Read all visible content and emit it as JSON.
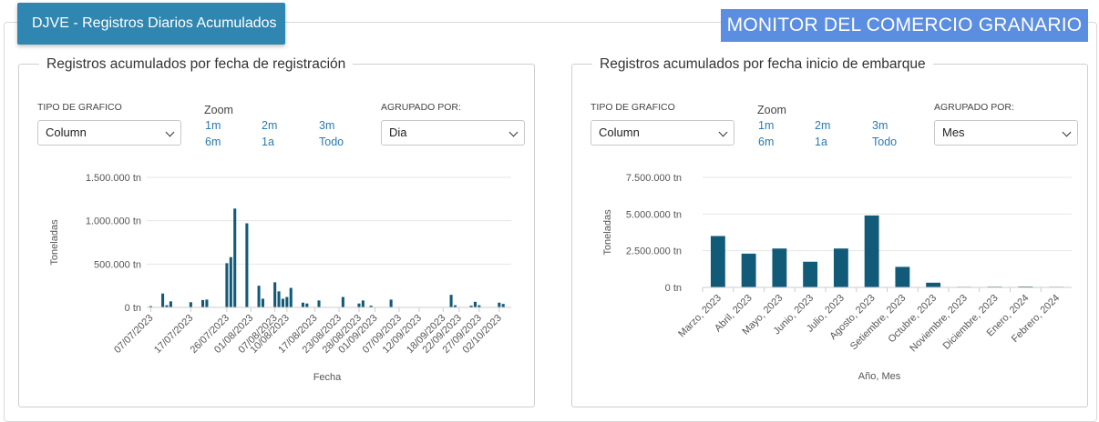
{
  "header": {
    "tab_label": "DJVE - Registros Diarios Acumulados",
    "monitor_title": "MONITOR DEL COMERCIO GRANARIO"
  },
  "left_card": {
    "title": "Registros acumulados por fecha de registración",
    "chart_type_label": "TIPO DE GRAFICO",
    "chart_type_value": "Column",
    "zoom_label": "Zoom",
    "zoom_options": [
      "1m",
      "2m",
      "3m",
      "6m",
      "1a",
      "Todo"
    ],
    "group_label": "AGRUPADO POR:",
    "group_value": "Dia"
  },
  "right_card": {
    "title": "Registros acumulados por fecha inicio de embarque",
    "chart_type_label": "TIPO DE GRAFICO",
    "chart_type_value": "Column",
    "zoom_label": "Zoom",
    "zoom_options": [
      "1m",
      "2m",
      "3m",
      "6m",
      "1a",
      "Todo"
    ],
    "group_label": "AGRUPADO POR:",
    "group_value": "Mes"
  },
  "colors": {
    "bar": "#125b78",
    "accent": "#2f86b0",
    "monitor": "#5b8de0",
    "grid": "#e6e6e6",
    "link": "#2a7ab0"
  },
  "chart_data": [
    {
      "type": "bar",
      "title": "",
      "xlabel": "Fecha",
      "ylabel": "Toneladas",
      "ylim": [
        0,
        1500000
      ],
      "yticks": [
        0,
        500000,
        1000000,
        1500000
      ],
      "ytick_labels": [
        "0 tn",
        "500.000 tn",
        "1.000.000 tn",
        "1.500.000 tn"
      ],
      "x_start": "2023-07-06",
      "x_end": "2023-10-05",
      "xtick_labels": [
        {
          "date": "2023-07-07",
          "label": "07/07/2023"
        },
        {
          "date": "2023-07-17",
          "label": "17/07/2023"
        },
        {
          "date": "2023-07-26",
          "label": "26/07/2023"
        },
        {
          "date": "2023-08-01",
          "label": "01/08/2023"
        },
        {
          "date": "2023-08-07",
          "label": "07/08/2023"
        },
        {
          "date": "2023-08-10",
          "label": "10/08/2023"
        },
        {
          "date": "2023-08-17",
          "label": "17/08/2023"
        },
        {
          "date": "2023-08-23",
          "label": "23/08/2023"
        },
        {
          "date": "2023-08-28",
          "label": "28/08/2023"
        },
        {
          "date": "2023-09-01",
          "label": "01/09/2023"
        },
        {
          "date": "2023-09-07",
          "label": "07/09/2023"
        },
        {
          "date": "2023-09-12",
          "label": "12/09/2023"
        },
        {
          "date": "2023-09-18",
          "label": "18/09/2023"
        },
        {
          "date": "2023-09-22",
          "label": "22/09/2023"
        },
        {
          "date": "2023-09-27",
          "label": "27/09/2023"
        },
        {
          "date": "2023-10-02",
          "label": "02/10/2023"
        }
      ],
      "points": [
        {
          "date": "2023-07-07",
          "value": 15000
        },
        {
          "date": "2023-07-10",
          "value": 160000
        },
        {
          "date": "2023-07-11",
          "value": 25000
        },
        {
          "date": "2023-07-12",
          "value": 70000
        },
        {
          "date": "2023-07-17",
          "value": 60000
        },
        {
          "date": "2023-07-20",
          "value": 85000
        },
        {
          "date": "2023-07-21",
          "value": 90000
        },
        {
          "date": "2023-07-26",
          "value": 510000
        },
        {
          "date": "2023-07-27",
          "value": 580000
        },
        {
          "date": "2023-07-28",
          "value": 1140000
        },
        {
          "date": "2023-07-31",
          "value": 970000
        },
        {
          "date": "2023-08-03",
          "value": 250000
        },
        {
          "date": "2023-08-04",
          "value": 100000
        },
        {
          "date": "2023-08-07",
          "value": 290000
        },
        {
          "date": "2023-08-08",
          "value": 185000
        },
        {
          "date": "2023-08-09",
          "value": 100000
        },
        {
          "date": "2023-08-10",
          "value": 120000
        },
        {
          "date": "2023-08-11",
          "value": 225000
        },
        {
          "date": "2023-08-14",
          "value": 55000
        },
        {
          "date": "2023-08-15",
          "value": 45000
        },
        {
          "date": "2023-08-18",
          "value": 80000
        },
        {
          "date": "2023-08-24",
          "value": 120000
        },
        {
          "date": "2023-08-28",
          "value": 45000
        },
        {
          "date": "2023-08-29",
          "value": 80000
        },
        {
          "date": "2023-08-31",
          "value": 20000
        },
        {
          "date": "2023-09-05",
          "value": 90000
        },
        {
          "date": "2023-09-20",
          "value": 145000
        },
        {
          "date": "2023-09-21",
          "value": 25000
        },
        {
          "date": "2023-09-25",
          "value": 20000
        },
        {
          "date": "2023-09-26",
          "value": 65000
        },
        {
          "date": "2023-09-27",
          "value": 25000
        },
        {
          "date": "2023-10-02",
          "value": 55000
        },
        {
          "date": "2023-10-03",
          "value": 40000
        }
      ]
    },
    {
      "type": "bar",
      "title": "",
      "xlabel": "Año, Mes",
      "ylabel": "Toneladas",
      "ylim": [
        0,
        7500000
      ],
      "yticks": [
        0,
        2500000,
        5000000,
        7500000
      ],
      "ytick_labels": [
        "0 tn",
        "2.500.000 tn",
        "5.000.000 tn",
        "7.500.000 tn"
      ],
      "categories": [
        "Marzo, 2023",
        "Abril, 2023",
        "Mayo, 2023",
        "Junio, 2023",
        "Julio, 2023",
        "Agosto, 2023",
        "Setiembre, 2023",
        "Octubre, 2023",
        "Noviembre, 2023",
        "Diciembre, 2023",
        "Enero, 2024",
        "Febrero, 2024"
      ],
      "values": [
        3500000,
        2300000,
        2650000,
        1750000,
        2650000,
        4900000,
        1400000,
        320000,
        40000,
        50000,
        60000,
        40000
      ]
    }
  ]
}
